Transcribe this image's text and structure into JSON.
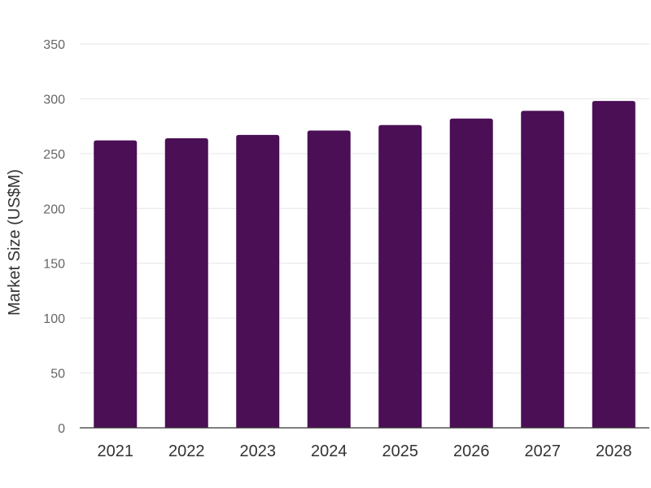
{
  "chart_data": {
    "type": "bar",
    "title": "",
    "xlabel": "",
    "ylabel": "Market Size (US$M)",
    "categories": [
      "2021",
      "2022",
      "2023",
      "2024",
      "2025",
      "2026",
      "2027",
      "2028"
    ],
    "values": [
      262,
      264,
      267,
      271,
      276,
      282,
      289,
      298
    ],
    "ylim": [
      0,
      350
    ],
    "yticks": [
      "0",
      "50",
      "100",
      "150",
      "200",
      "250",
      "300",
      "350"
    ],
    "grid": true,
    "legend": "none",
    "colors": {
      "bar": "#4b0f56",
      "grid": "#e6e6e6",
      "axis": "#333333"
    }
  }
}
